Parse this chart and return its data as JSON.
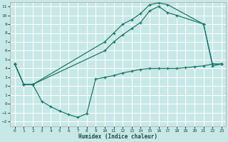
{
  "xlabel": "Humidex (Indice chaleur)",
  "background_color": "#c8e8e8",
  "grid_color": "#ffffff",
  "line_color": "#1a7a6a",
  "xlim": [
    -0.5,
    23.5
  ],
  "ylim": [
    -2.5,
    11.5
  ],
  "xticks": [
    0,
    1,
    2,
    3,
    4,
    5,
    6,
    7,
    8,
    9,
    10,
    11,
    12,
    13,
    14,
    15,
    16,
    17,
    18,
    19,
    20,
    21,
    22,
    23
  ],
  "yticks": [
    -2,
    -1,
    0,
    1,
    2,
    3,
    4,
    5,
    6,
    7,
    8,
    9,
    10,
    11
  ],
  "curve_upper_x": [
    0,
    1,
    2,
    10,
    11,
    12,
    13,
    14,
    15,
    16,
    17,
    21,
    22,
    23
  ],
  "curve_upper_y": [
    4.5,
    2.2,
    2.2,
    7.0,
    8.0,
    9.0,
    9.5,
    10.2,
    11.2,
    11.4,
    11.2,
    9.0,
    4.5,
    4.5
  ],
  "curve_mid_x": [
    0,
    1,
    2,
    10,
    11,
    12,
    13,
    14,
    15,
    16,
    17,
    18,
    21,
    22,
    23
  ],
  "curve_mid_y": [
    4.5,
    2.2,
    2.2,
    6.0,
    7.0,
    7.8,
    8.5,
    9.2,
    10.5,
    11.0,
    10.3,
    10.0,
    9.0,
    4.3,
    4.5
  ],
  "curve_low_x": [
    0,
    1,
    2,
    3,
    4,
    5,
    6,
    7,
    8,
    9,
    10,
    11,
    12,
    13,
    14,
    15,
    16,
    17,
    18,
    19,
    20,
    21,
    22,
    23
  ],
  "curve_low_y": [
    4.5,
    2.2,
    2.2,
    0.3,
    -0.3,
    -0.8,
    -1.2,
    -1.5,
    -1.1,
    2.8,
    3.0,
    3.2,
    3.5,
    3.7,
    3.9,
    4.0,
    4.0,
    4.0,
    4.0,
    4.1,
    4.2,
    4.3,
    4.5,
    4.5
  ]
}
